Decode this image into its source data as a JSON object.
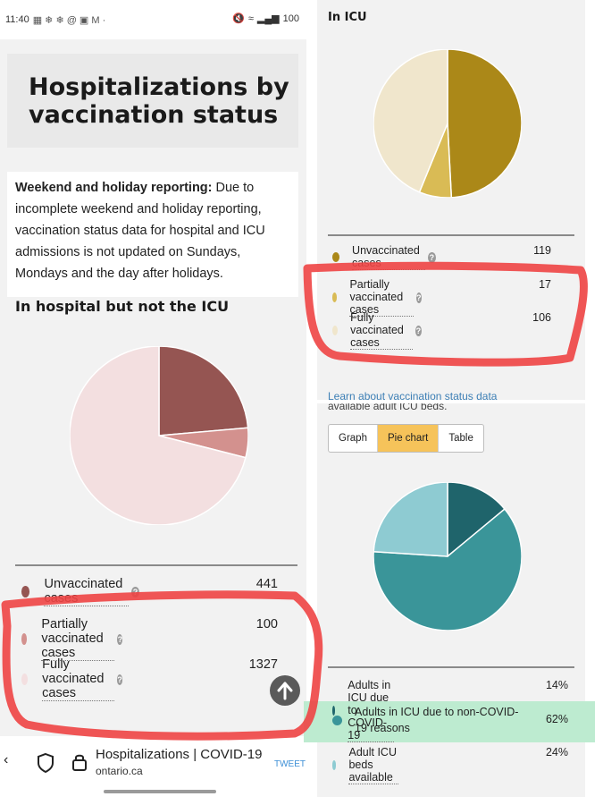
{
  "status_bar": {
    "time": "11:40",
    "battery": "100"
  },
  "page": {
    "title": "Hospitalizations by vaccination status",
    "notice_bold": "Weekend and holiday reporting:",
    "notice_text": " Due to incomplete weekend and holiday reporting, vaccination status data for hospital and ICU admissions is not updated on Sundays, Mondays and the day after holidays.",
    "hosp_heading": "In hospital but not the ICU"
  },
  "hospital_legend": [
    {
      "label": "Unvaccinated cases",
      "value": "441",
      "color": "#955552"
    },
    {
      "label": "Partially vaccinated cases",
      "value": "100",
      "color": "#d3918e"
    },
    {
      "label": "Fully vaccinated cases",
      "value": "1327",
      "color": "#f3dfe0"
    }
  ],
  "browser_bar": {
    "title": "Hospitalizations | COVID-19",
    "domain": "ontario.ca",
    "tweet": "TWEET"
  },
  "icu": {
    "heading": "In ICU",
    "link": "Learn about vaccination status data"
  },
  "icu_legend": [
    {
      "label": "Unvaccinated cases",
      "value": "119",
      "color": "#ab8818"
    },
    {
      "label": "Partially vaccinated cases",
      "value": "17",
      "color": "#d9bb55"
    },
    {
      "label": "Fully vaccinated cases",
      "value": "106",
      "color": "#f0e6cc"
    }
  ],
  "beds": {
    "cut_text": "available adult ICU beds.",
    "tabs": [
      "Graph",
      "Pie chart",
      "Table"
    ],
    "active_tab": "Pie chart"
  },
  "beds_legend": [
    {
      "label": "Adults in ICU due to COVID-19",
      "value": "14%",
      "color": "#1f646b"
    },
    {
      "label": "Adults in ICU due to non-COVID-19 reasons",
      "value": "62%",
      "color": "#3a9599"
    },
    {
      "label": "Adult ICU beds available",
      "value": "24%",
      "color": "#8ecbd2"
    }
  ],
  "chart_data": [
    {
      "type": "pie",
      "title": "In hospital but not the ICU",
      "categories": [
        "Unvaccinated cases",
        "Partially vaccinated cases",
        "Fully vaccinated cases"
      ],
      "values": [
        441,
        100,
        1327
      ],
      "colors": [
        "#955552",
        "#d3918e",
        "#f3dfe0"
      ]
    },
    {
      "type": "pie",
      "title": "In ICU",
      "categories": [
        "Unvaccinated cases",
        "Partially vaccinated cases",
        "Fully vaccinated cases"
      ],
      "values": [
        119,
        17,
        106
      ],
      "colors": [
        "#ab8818",
        "#d9bb55",
        "#f0e6cc"
      ]
    },
    {
      "type": "pie",
      "categories": [
        "Adults in ICU due to COVID-19",
        "Adults in ICU due to non-COVID-19 reasons",
        "Adult ICU beds available"
      ],
      "values": [
        14,
        62,
        24
      ],
      "colors": [
        "#1f646b",
        "#3a9599",
        "#8ecbd2"
      ]
    }
  ]
}
